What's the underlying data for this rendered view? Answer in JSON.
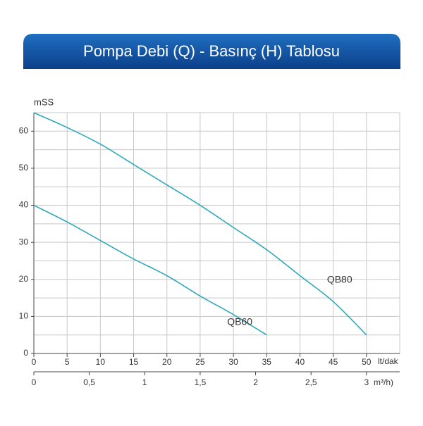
{
  "chart_data": {
    "type": "line",
    "title": "Pompa Debi (Q) - Basınç (H) Tablosu",
    "y_label": "mSS",
    "x_label": "lt/dak",
    "x2_label": "m³/h)",
    "xlim": [
      0,
      55
    ],
    "xticks": [
      0,
      5,
      10,
      15,
      20,
      25,
      30,
      35,
      40,
      45,
      50
    ],
    "xgrid": [
      0,
      5,
      10,
      15,
      20,
      25,
      30,
      35,
      40,
      45,
      50,
      55
    ],
    "x2lim": [
      0,
      3.3
    ],
    "x2ticks": [
      0,
      {
        "value": 0.5,
        "label": "0,5"
      },
      1,
      {
        "value": 1.5,
        "label": "1,5"
      },
      2,
      {
        "value": 2.5,
        "label": "2,5"
      },
      3
    ],
    "ylim": [
      0,
      65
    ],
    "yticks": [
      0,
      10,
      20,
      30,
      40,
      50,
      60
    ],
    "ygrid": [
      0,
      5,
      10,
      15,
      20,
      25,
      30,
      35,
      40,
      45,
      50,
      55,
      60,
      65
    ],
    "grid": true,
    "series": [
      {
        "name": "QB80",
        "color": "#2fa9b8",
        "x": [
          0,
          5,
          10,
          15,
          20,
          25,
          30,
          35,
          40,
          45,
          50
        ],
        "values": [
          65,
          61,
          56.5,
          51,
          45.5,
          40,
          34,
          28,
          21,
          14,
          5
        ]
      },
      {
        "name": "QB60",
        "color": "#2fa9b8",
        "x": [
          0,
          5,
          10,
          15,
          20,
          25,
          30,
          35
        ],
        "values": [
          40,
          35.5,
          30.5,
          25.5,
          21,
          15.5,
          10.5,
          5
        ]
      }
    ]
  }
}
